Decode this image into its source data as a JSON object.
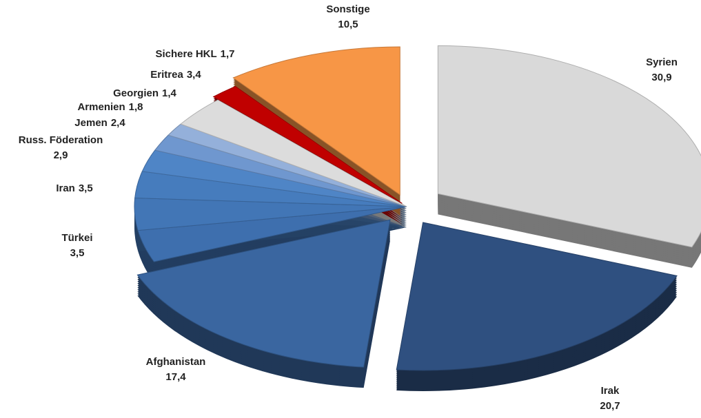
{
  "chart_data": {
    "type": "pie",
    "categories": [
      "Syrien",
      "Irak",
      "Afghanistan",
      "Türkei",
      "Iran",
      "Russ. Föderation",
      "Jemen",
      "Armenien",
      "Georgien",
      "Eritrea",
      "Sichere HKL",
      "Sonstige"
    ],
    "values": [
      30.9,
      20.7,
      17.4,
      3.5,
      3.5,
      2.9,
      2.4,
      1.8,
      1.4,
      3.4,
      1.7,
      10.5
    ],
    "value_labels": [
      "30,9",
      "20,7",
      "17,4",
      "3,5",
      "3,5",
      "2,9",
      "2,4",
      "1,8",
      "1,4",
      "3,4",
      "1,7",
      "10,5"
    ],
    "colors": [
      "#d9d9d9",
      "#2f5080",
      "#3a66a0",
      "#3e6fae",
      "#4276b6",
      "#467cbd",
      "#4f85c6",
      "#6f97cf",
      "#94b0da",
      "#dcdcdc",
      "#c00000",
      "#f79646"
    ]
  }
}
